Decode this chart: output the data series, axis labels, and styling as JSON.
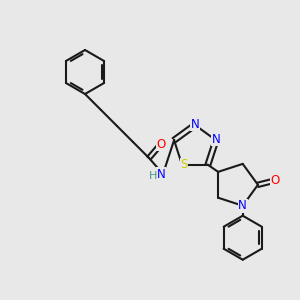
{
  "bg_color": "#e8e8e8",
  "bond_color": "#1a1a1a",
  "bond_lw": 1.5,
  "atom_colors": {
    "N": "#0000ff",
    "O": "#ff0000",
    "S": "#cccc00",
    "H": "#4a9a8a",
    "C": "#1a1a1a"
  },
  "font_size": 8.5
}
